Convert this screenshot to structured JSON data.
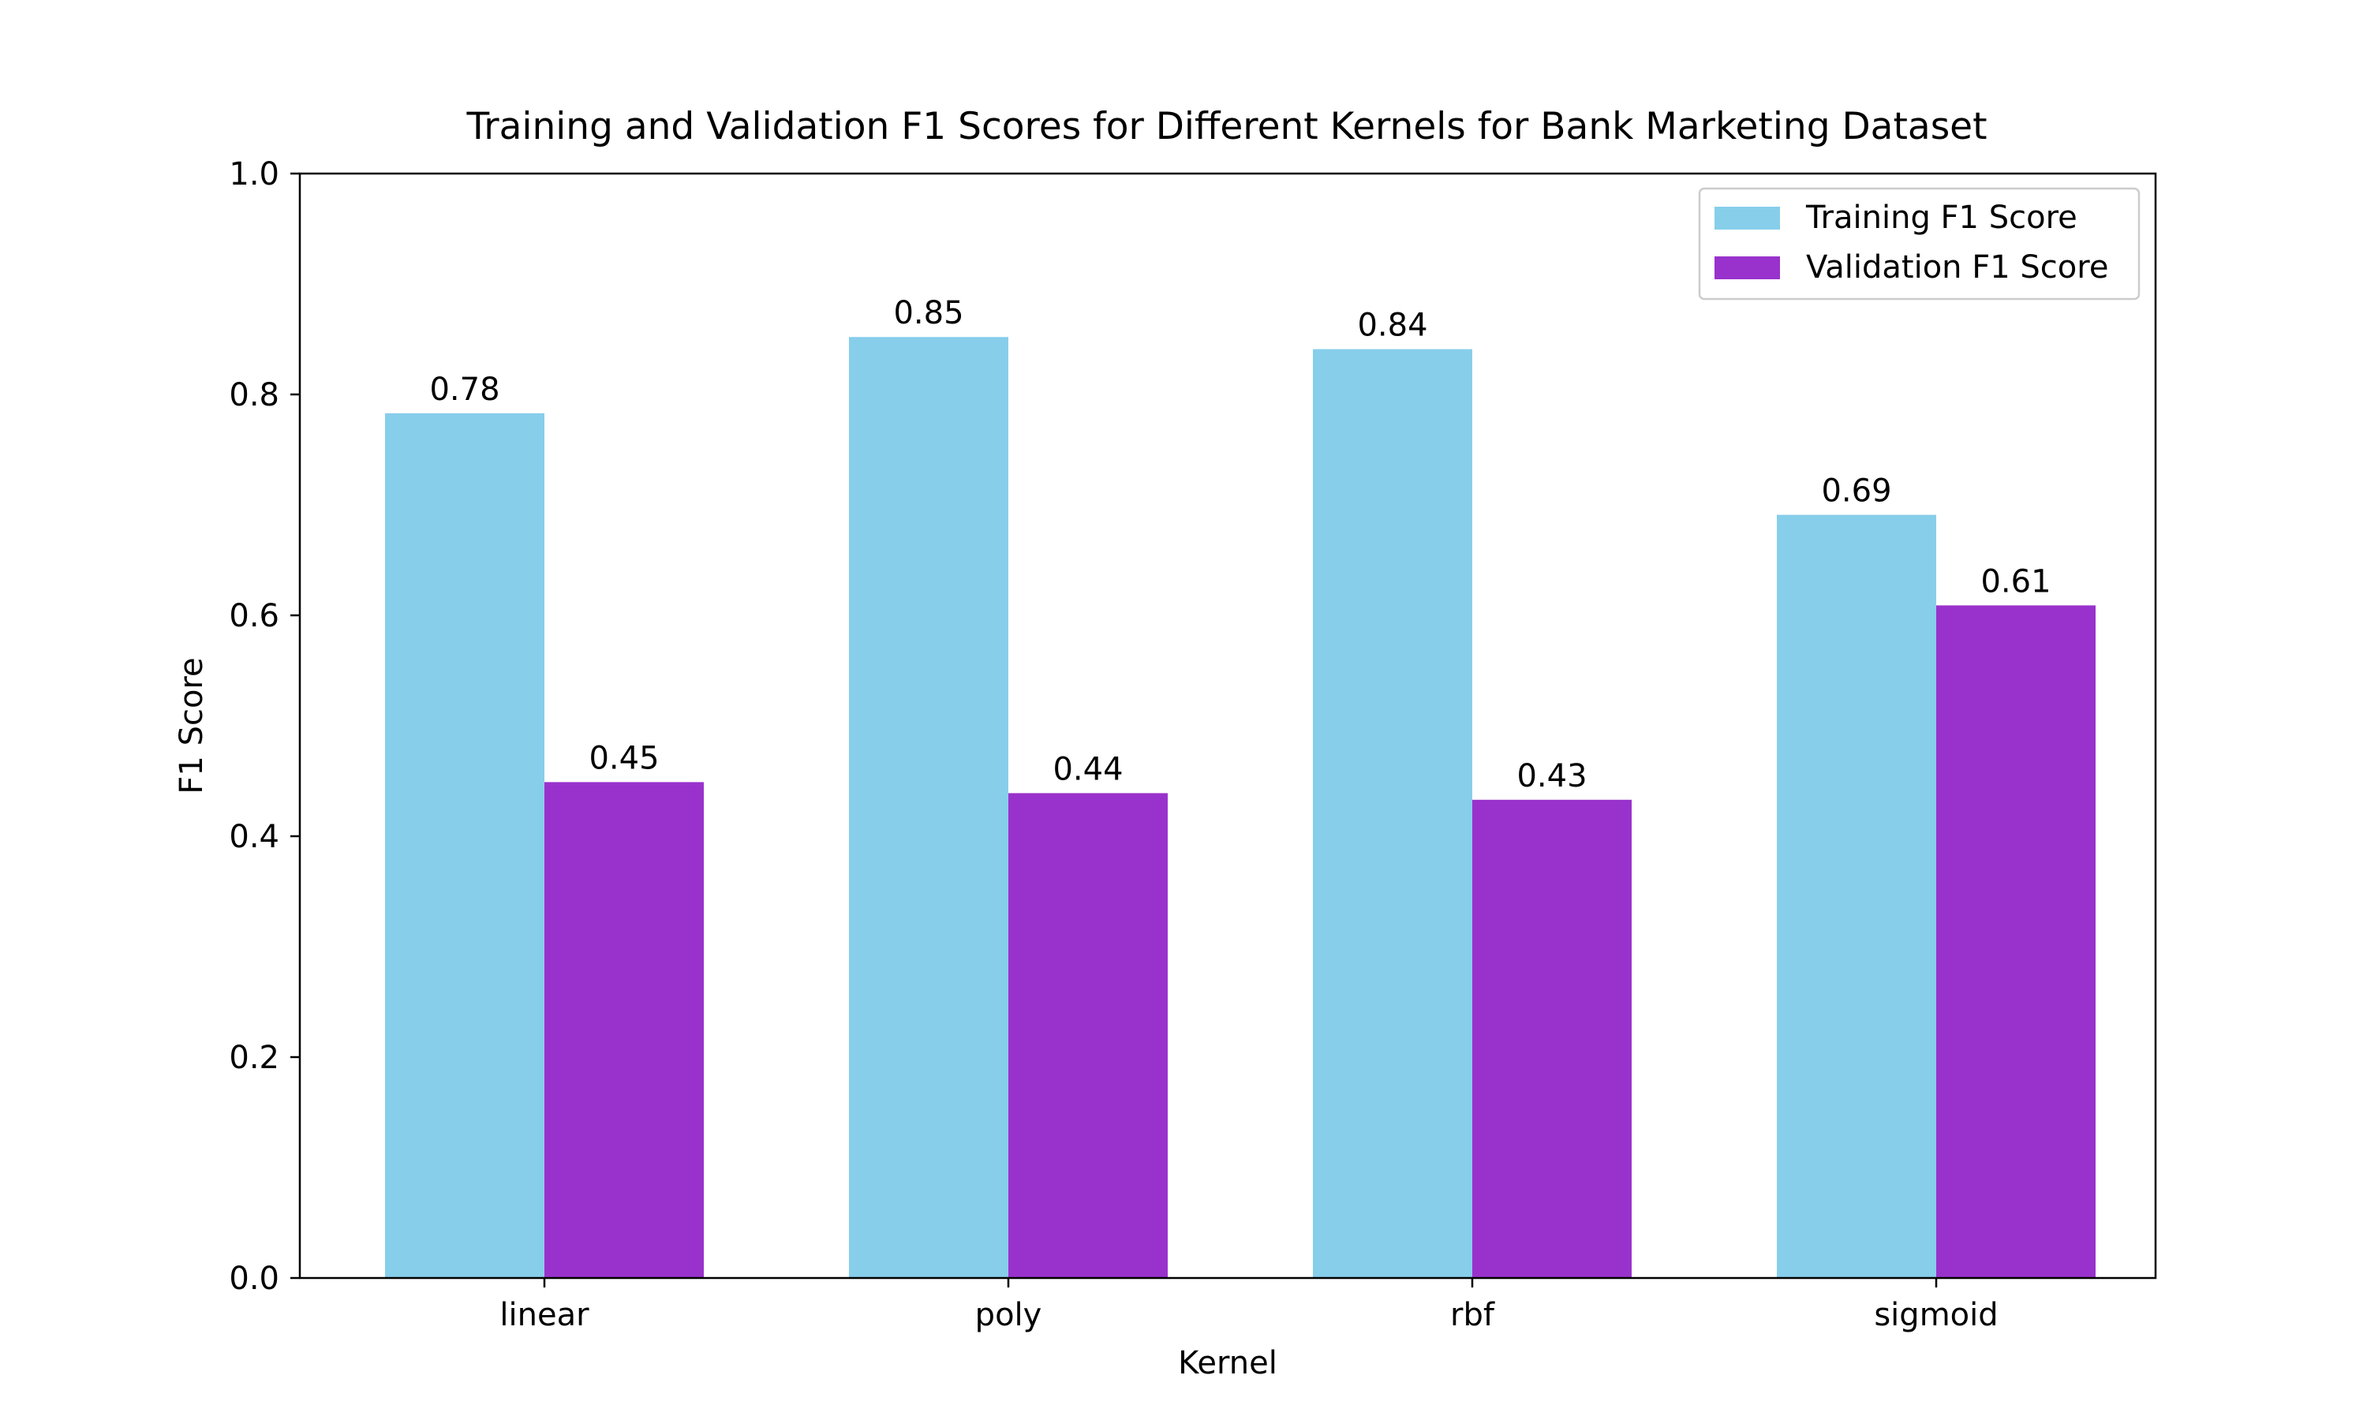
{
  "chart_data": {
    "type": "bar",
    "title": "Training and Validation F1 Scores for Different Kernels for Bank Marketing Dataset",
    "xlabel": "Kernel",
    "ylabel": "F1 Score",
    "ylim": [
      0,
      1.0
    ],
    "yticks": [
      "0.0",
      "0.2",
      "0.4",
      "0.6",
      "0.8",
      "1.0"
    ],
    "categories": [
      "linear",
      "poly",
      "rbf",
      "sigmoid"
    ],
    "series": [
      {
        "name": "Training F1 Score",
        "color": "#87ceeb",
        "values": [
          0.783,
          0.852,
          0.841,
          0.691
        ],
        "labels": [
          "0.78",
          "0.85",
          "0.84",
          "0.69"
        ]
      },
      {
        "name": "Validation F1 Score",
        "color": "#9932cc",
        "values": [
          0.449,
          0.439,
          0.433,
          0.609
        ],
        "labels": [
          "0.45",
          "0.44",
          "0.43",
          "0.61"
        ]
      }
    ],
    "legend_position": "top-right",
    "grid": false
  }
}
